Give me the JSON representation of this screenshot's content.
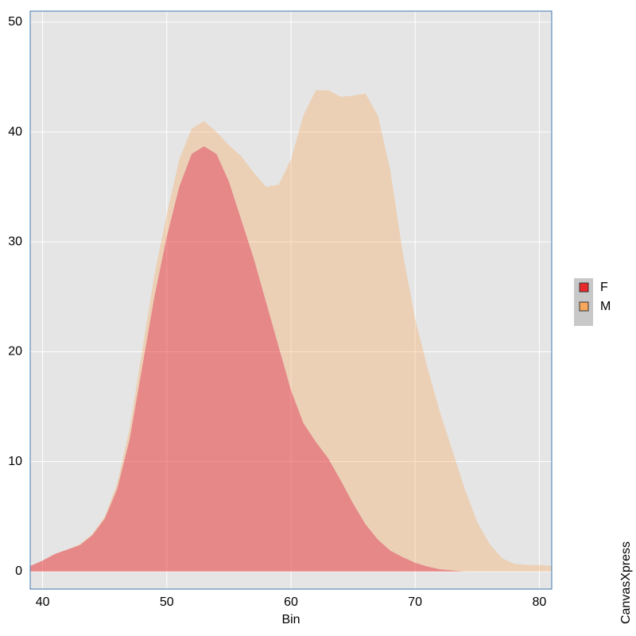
{
  "chart_data": {
    "type": "area",
    "stacked": true,
    "x_label": "Bin",
    "watermark": "CanvasXpress",
    "x": [
      39,
      40,
      41,
      42,
      43,
      44,
      45,
      46,
      47,
      48,
      49,
      50,
      51,
      52,
      53,
      54,
      55,
      56,
      57,
      58,
      59,
      60,
      61,
      62,
      63,
      64,
      65,
      66,
      67,
      68,
      69,
      70,
      71,
      72,
      73,
      74,
      75,
      76,
      77,
      78,
      79,
      80,
      81
    ],
    "series": [
      {
        "name": "F",
        "color": "#e8292c",
        "values": [
          0.5,
          1.0,
          1.6,
          2.0,
          2.4,
          3.3,
          4.8,
          7.5,
          12,
          18.5,
          25,
          30.5,
          35,
          38,
          38.7,
          38,
          35.5,
          32,
          28.5,
          24.5,
          20.5,
          16.5,
          13.5,
          11.8,
          10.3,
          8.3,
          6.2,
          4.3,
          2.9,
          1.9,
          1.3,
          0.8,
          0.45,
          0.2,
          0.1,
          0,
          0,
          0,
          0,
          0,
          0,
          0,
          0
        ]
      },
      {
        "name": "M",
        "color": "#f7a85c",
        "values": [
          0,
          0,
          0,
          0,
          0.1,
          0.1,
          0.2,
          0.5,
          1,
          1.5,
          2,
          2,
          2.5,
          2.3,
          2.3,
          2,
          3.3,
          5.8,
          7.8,
          10.5,
          14.7,
          21,
          28,
          32,
          33.5,
          34.9,
          37.1,
          39.2,
          38.6,
          34.6,
          27.7,
          22.2,
          18.05,
          14.3,
          10.9,
          7.5,
          4.5,
          2.5,
          1.2,
          0.7,
          0.6,
          0.6,
          0.5
        ]
      }
    ],
    "xlim": [
      39,
      81
    ],
    "xticks": [
      40,
      50,
      60,
      70,
      80
    ],
    "ylim": [
      -1.6,
      51
    ],
    "yticks": [
      0,
      10,
      20,
      30,
      40,
      50
    ],
    "grid": true,
    "legend": "right"
  }
}
